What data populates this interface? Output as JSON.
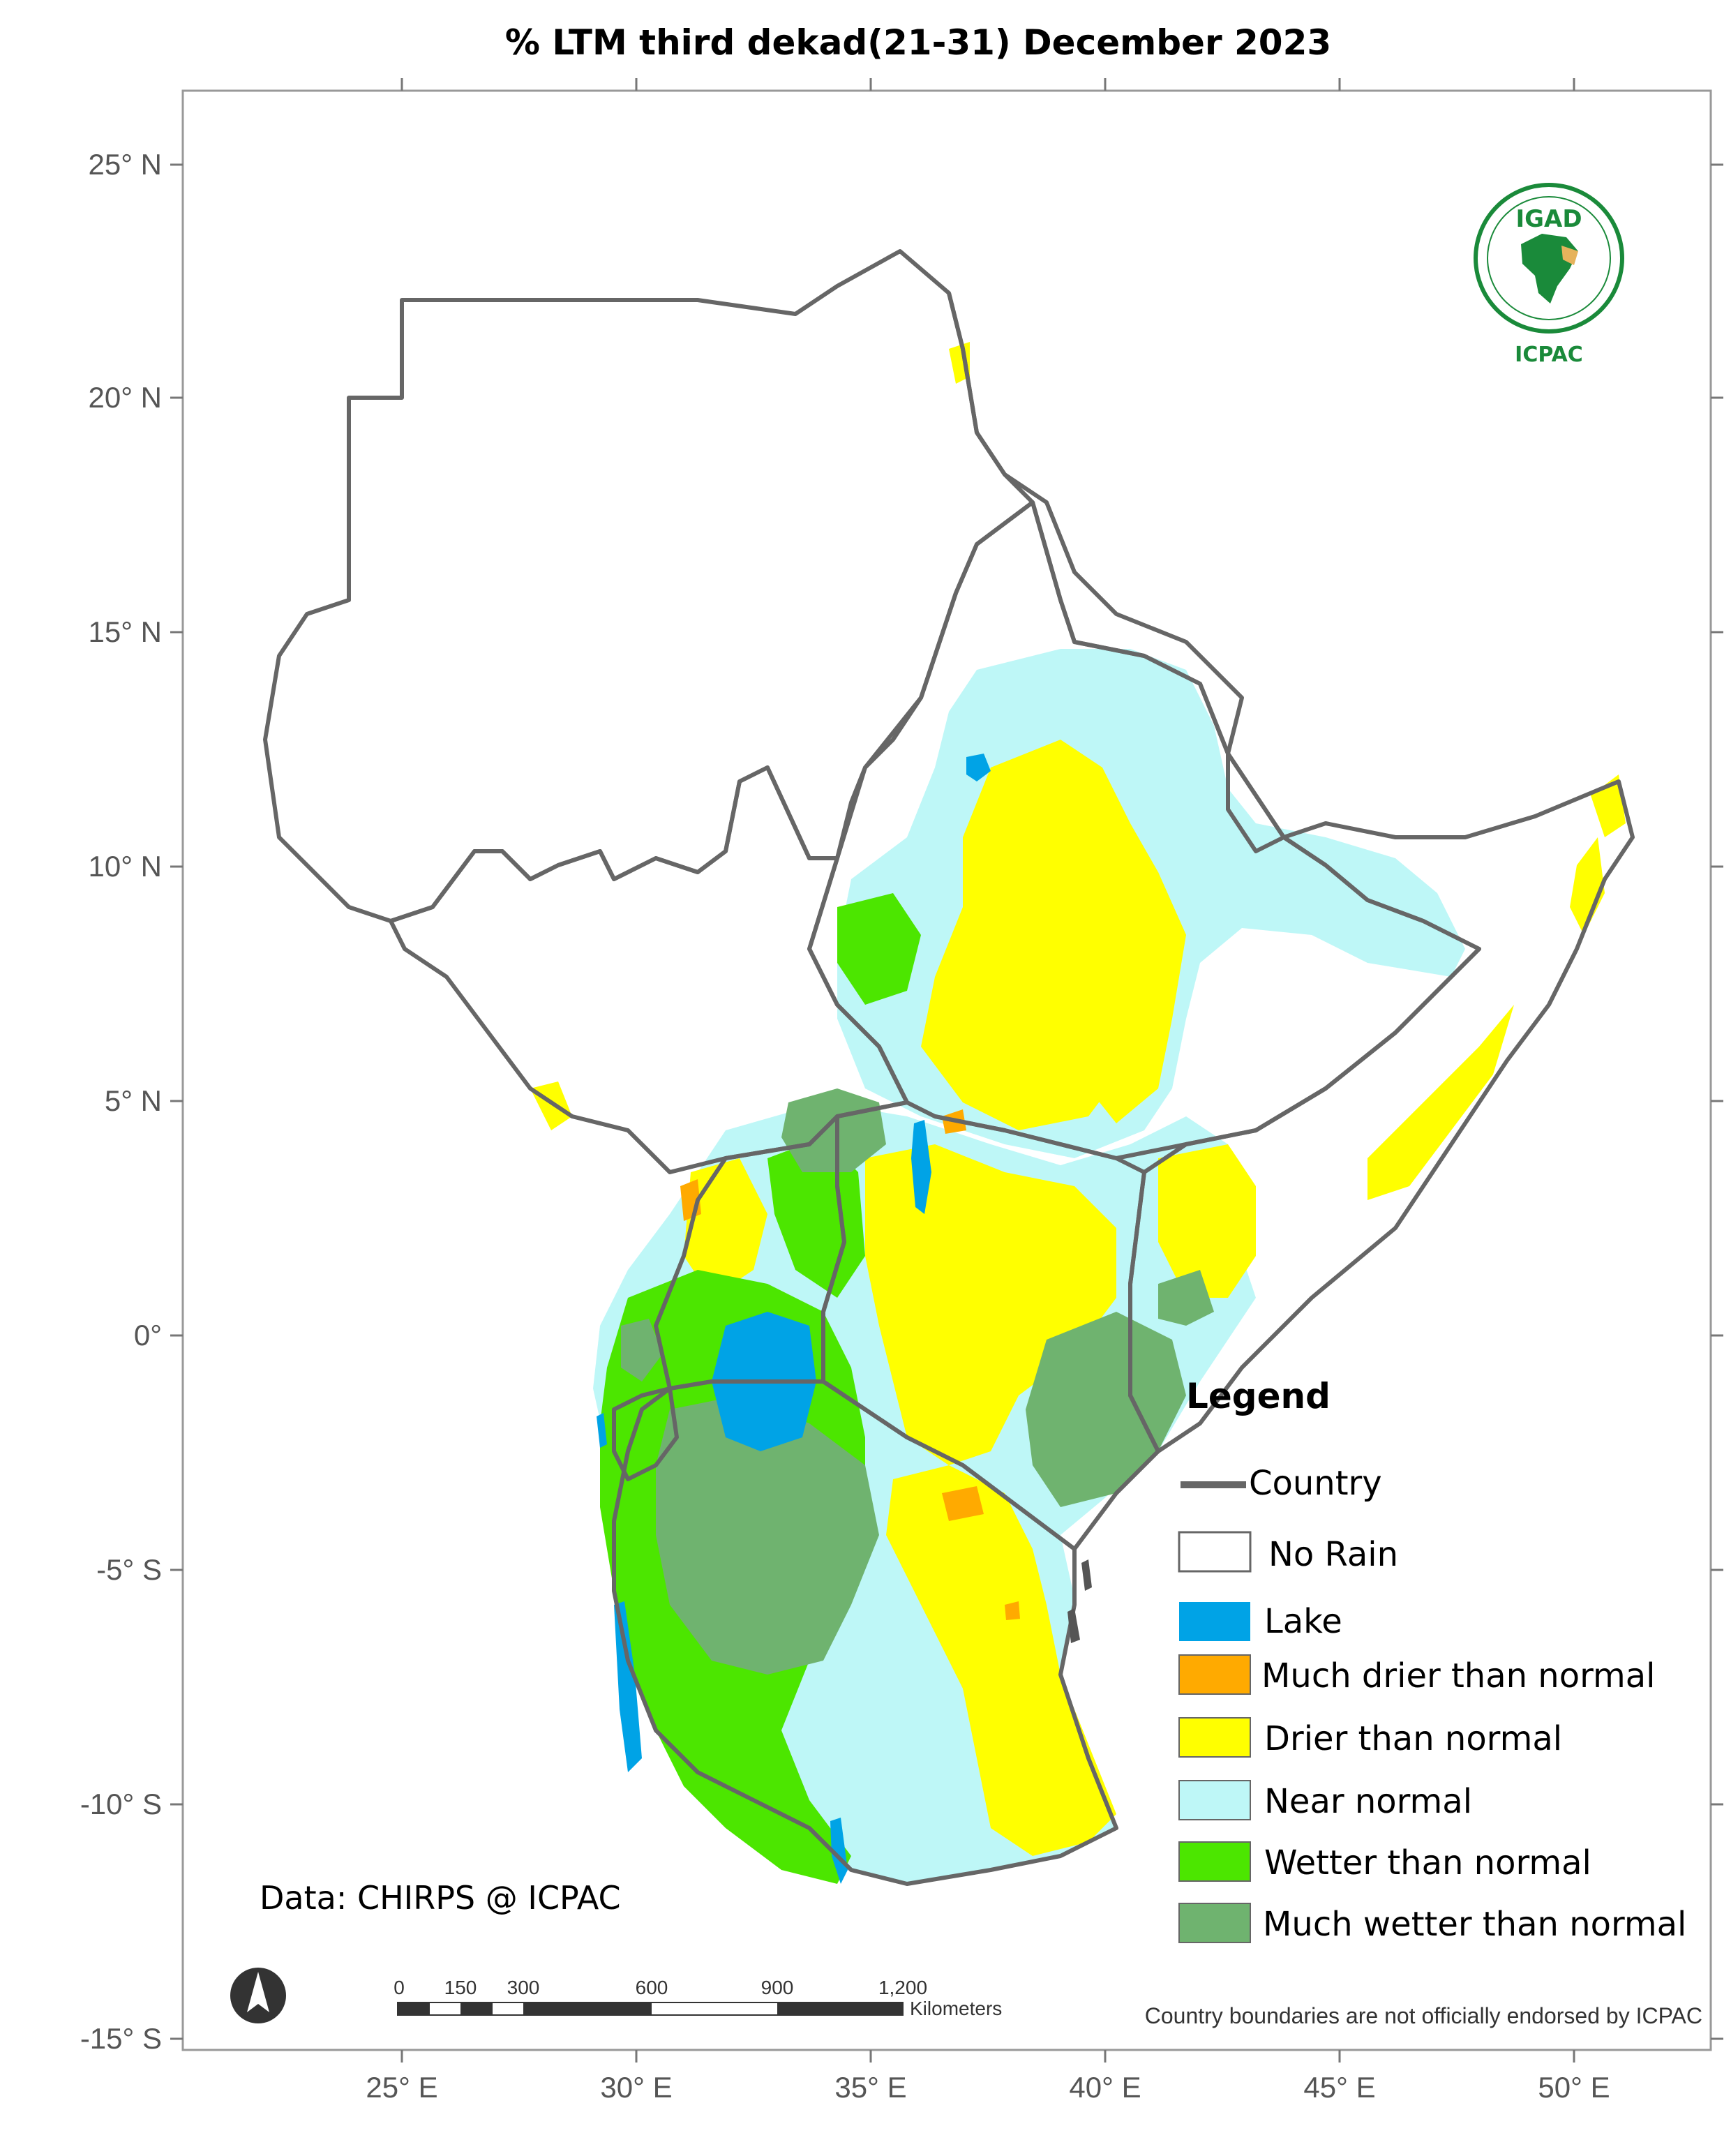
{
  "title": "% LTM  third dekad(21-31) December 2023",
  "axes": {
    "lat_labels": [
      "25° N",
      "20° N",
      "15° N",
      "10° N",
      "5° N",
      "0°",
      "-5° S",
      "-10° S",
      "-15° S"
    ],
    "lon_labels": [
      "25° E",
      "30° E",
      "35° E",
      "40° E",
      "45° E",
      "50° E"
    ]
  },
  "legend": {
    "title": "Legend",
    "boundary_label": "Country",
    "boundary_color": "#666666",
    "classes": [
      {
        "label": "No Rain",
        "color": "#ffffff"
      },
      {
        "label": "Lake",
        "color": "#00a3e6"
      },
      {
        "label": "Much drier than normal",
        "color": "#ffaa00"
      },
      {
        "label": "Drier than normal",
        "color": "#ffff00"
      },
      {
        "label": "Near normal",
        "color": "#bef7f7"
      },
      {
        "label": "Wetter than normal",
        "color": "#4ce600"
      },
      {
        "label": "Much wetter than normal",
        "color": "#6fb36f"
      }
    ]
  },
  "credit": "Data: CHIRPS @ ICPAC",
  "scale_bar": {
    "labels": [
      "0",
      "150",
      "300",
      "600",
      "900",
      "1,200"
    ],
    "unit": "Kilometers"
  },
  "disclaimer": "Country boundaries are not officially endorsed by ICPAC",
  "logo": {
    "top": "IGAD",
    "bottom": "ICPAC",
    "icon": "igad-africa-emblem-icon"
  },
  "north_arrow": {
    "icon": "north-arrow-icon"
  }
}
